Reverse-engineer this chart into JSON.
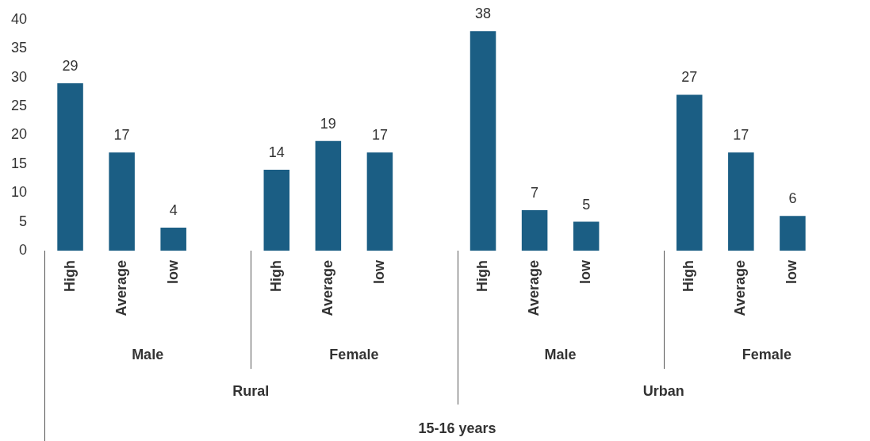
{
  "chart_data": {
    "type": "bar",
    "categories": [
      "High",
      "Average",
      "low",
      null,
      "High",
      "Average",
      "low",
      null,
      "High",
      "Average",
      "low",
      null,
      "High",
      "Average",
      "low",
      null
    ],
    "values": [
      29,
      17,
      4,
      null,
      14,
      19,
      17,
      null,
      38,
      7,
      5,
      null,
      27,
      17,
      6,
      null
    ],
    "color": "#1b5e84",
    "ylim": [
      0,
      40
    ],
    "yticks": [
      0,
      5,
      10,
      15,
      20,
      25,
      30,
      35,
      40
    ],
    "data_labels": true,
    "annotations": [
      "Male",
      "Female",
      "Male",
      "Female",
      "Rural",
      "Urban",
      "15-16 years"
    ]
  }
}
